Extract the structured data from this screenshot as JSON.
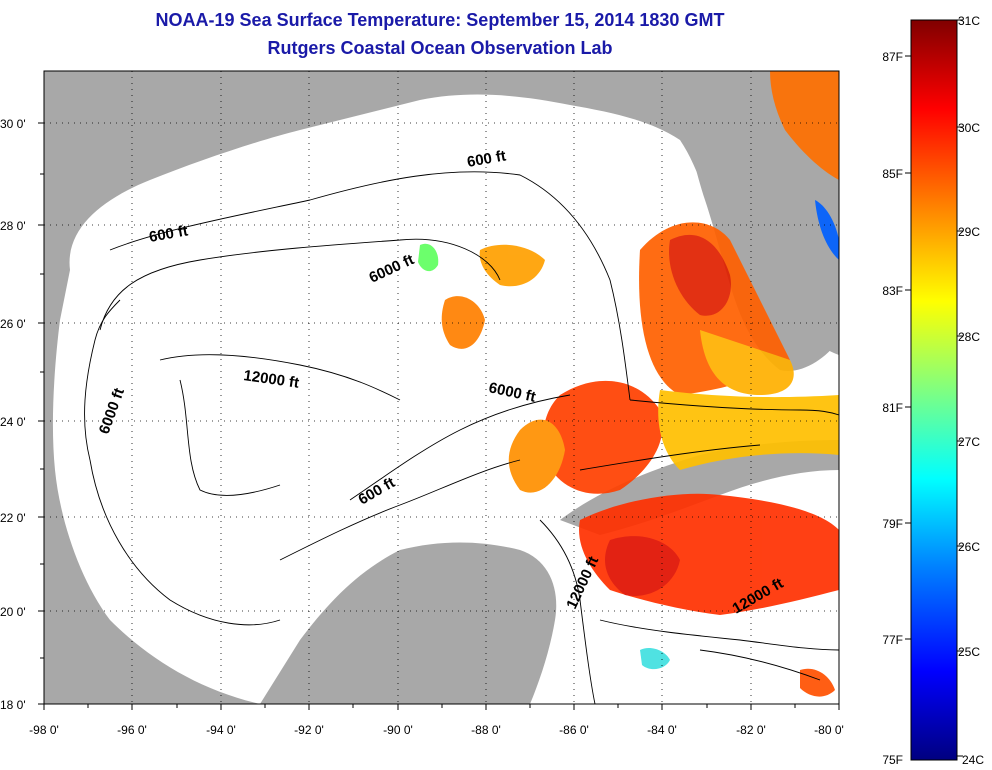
{
  "title": {
    "line1": "NOAA-19 Sea Surface Temperature:  September 15, 2014 1830 GMT",
    "line2": "Rutgers Coastal Ocean Observation Lab"
  },
  "map": {
    "lat_labels": [
      "30 0'",
      "28 0'",
      "26 0'",
      "24 0'",
      "22 0'",
      "20 0'",
      "18 0'"
    ],
    "lon_labels": [
      "-98 0'",
      "-96 0'",
      "-94 0'",
      "-92 0'",
      "-90 0'",
      "-88 0'",
      "-86 0'",
      "-84 0'",
      "-82 0'",
      "-80 0'"
    ],
    "contour_labels": [
      "600 ft",
      "600 ft",
      "6000 ft",
      "6000 ft",
      "12000 ft",
      "6000 ft",
      "600 ft",
      "12000 ft",
      "12000 ft"
    ],
    "colors": {
      "land": "#a8a8a8",
      "ocean": "#ffffff"
    }
  },
  "colorbar": {
    "celsius": [
      "31C",
      "30C",
      "29C",
      "28C",
      "27C",
      "26C",
      "25C",
      "24C"
    ],
    "fahrenheit": [
      "87F",
      "85F",
      "83F",
      "81F",
      "79F",
      "77F",
      "75F"
    ],
    "colors": [
      "#800000",
      "#ff0000",
      "#ff8000",
      "#ffff00",
      "#80ff80",
      "#00ffff",
      "#0080ff",
      "#0000ff",
      "#000080"
    ]
  }
}
